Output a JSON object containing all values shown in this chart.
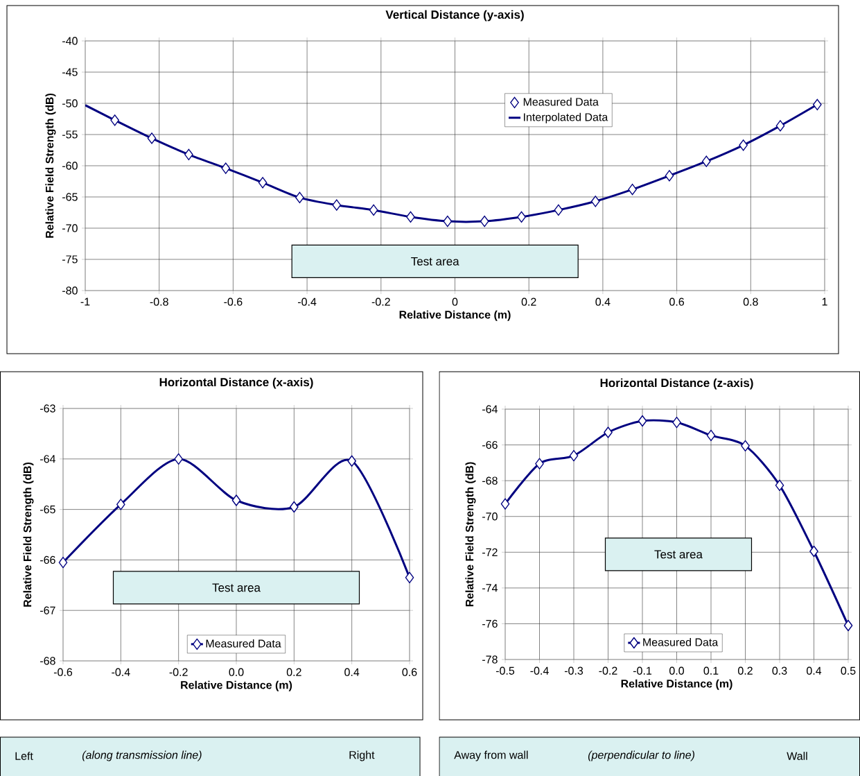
{
  "chart_data": [
    {
      "type": "line",
      "title": "Vertical Distance (y-axis)",
      "xlabel": "Relative Distance (m)",
      "ylabel": "Relative Field Strength (dB)",
      "xlim": [
        -1,
        1
      ],
      "ylim": [
        -80,
        -40
      ],
      "xticks": [
        -1,
        -0.8,
        -0.6,
        -0.4,
        -0.2,
        0,
        0.2,
        0.4,
        0.6,
        0.8,
        1
      ],
      "yticks": [
        -80,
        -75,
        -70,
        -65,
        -60,
        -55,
        -50,
        -45,
        -40
      ],
      "grid": true,
      "legend": "top",
      "annotations": [
        "Test area"
      ],
      "series": [
        {
          "name": "Measured Data",
          "type": "scatter",
          "marker": "diamond",
          "color": "#000080",
          "x": [
            -0.92,
            -0.82,
            -0.72,
            -0.62,
            -0.52,
            -0.42,
            -0.32,
            -0.22,
            -0.12,
            -0.02,
            0.08,
            0.18,
            0.28,
            0.38,
            0.48,
            0.58,
            0.68,
            0.78,
            0.88,
            0.98
          ],
          "values": [
            -52.7,
            -55.6,
            -58.2,
            -60.4,
            -62.7,
            -65.1,
            -66.3,
            -67.1,
            -68.2,
            -68.9,
            -68.9,
            -68.2,
            -67.1,
            -65.7,
            -63.8,
            -61.6,
            -59.3,
            -56.7,
            -53.6,
            -50.2
          ]
        },
        {
          "name": "Interpolated Data",
          "type": "line",
          "marker": "none",
          "color": "#000080",
          "x": [
            -1,
            -0.92,
            -0.82,
            -0.72,
            -0.62,
            -0.52,
            -0.42,
            -0.32,
            -0.22,
            -0.12,
            -0.02,
            0.08,
            0.18,
            0.28,
            0.38,
            0.48,
            0.58,
            0.68,
            0.78,
            0.88,
            0.98
          ],
          "values": [
            -50.3,
            -52.7,
            -55.6,
            -58.2,
            -60.4,
            -62.7,
            -65.1,
            -66.3,
            -67.1,
            -68.2,
            -68.9,
            -68.9,
            -68.2,
            -67.1,
            -65.7,
            -63.8,
            -61.6,
            -59.3,
            -56.7,
            -53.6,
            -50.2
          ]
        }
      ]
    },
    {
      "type": "line",
      "title": "Horizontal Distance (x-axis)",
      "xlabel": "Relative Distance (m)",
      "ylabel": "Relative Field Strength (dB)",
      "xlim": [
        -0.6,
        0.6
      ],
      "ylim": [
        -68,
        -63
      ],
      "xticks": [
        -0.6,
        -0.4,
        -0.2,
        {
          "value": 0,
          "label": "0.0"
        },
        0.2,
        0.4,
        0.6
      ],
      "yticks": [
        -68,
        -67,
        -66,
        -65,
        -64,
        -63
      ],
      "grid": true,
      "legend": "bottom",
      "marker": "diamond",
      "annotations": [
        "Test area",
        "Left",
        "(along transmission line)",
        "Right"
      ],
      "series": [
        {
          "name": "Measured Data",
          "color": "#000080",
          "x": [
            -0.6,
            -0.4,
            -0.2,
            0,
            0.2,
            0.4,
            0.6
          ],
          "values": [
            -66.05,
            -64.9,
            -64.0,
            -64.82,
            -64.95,
            -64.04,
            -66.35
          ]
        }
      ]
    },
    {
      "type": "line",
      "title": "Horizontal Distance (z-axis)",
      "xlabel": "Relative Distance (m)",
      "ylabel": "Relative Field Strength (dB)",
      "xlim": [
        -0.5,
        0.5
      ],
      "ylim": [
        -78,
        -64
      ],
      "xticks": [
        -0.5,
        -0.4,
        -0.3,
        -0.2,
        -0.1,
        {
          "value": 0,
          "label": "0.0"
        },
        0.1,
        0.2,
        0.3,
        0.4,
        0.5
      ],
      "yticks": [
        -78,
        -76,
        -74,
        -72,
        -70,
        -68,
        -66,
        -64
      ],
      "grid": true,
      "legend": "bottom",
      "marker": "diamond",
      "annotations": [
        "Test area",
        "Away from wall",
        "(perpendicular to line)",
        "Wall"
      ],
      "series": [
        {
          "name": "Measured Data",
          "color": "#000080",
          "x": [
            -0.5,
            -0.4,
            -0.3,
            -0.2,
            -0.1,
            0,
            0.1,
            0.2,
            0.3,
            0.4,
            0.5
          ],
          "values": [
            -69.3,
            -67.05,
            -66.6,
            -65.3,
            -64.66,
            -64.74,
            -65.47,
            -66.05,
            -68.26,
            -71.95,
            -76.1
          ]
        }
      ]
    }
  ]
}
